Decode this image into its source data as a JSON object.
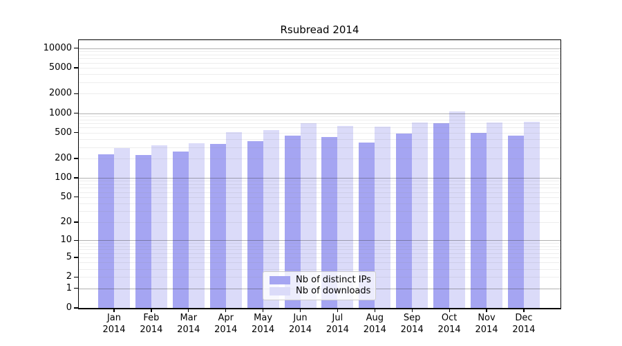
{
  "title": "Rsubread 2014",
  "chart_data": {
    "type": "bar",
    "title": "Rsubread 2014",
    "x_tick_months": [
      "Jan",
      "Feb",
      "Mar",
      "Apr",
      "May",
      "Jun",
      "Jul",
      "Aug",
      "Sep",
      "Oct",
      "Nov",
      "Dec"
    ],
    "x_tick_year": "2014",
    "categories": [
      "Jan 2014",
      "Feb 2014",
      "Mar 2014",
      "Apr 2014",
      "May 2014",
      "Jun 2014",
      "Jul 2014",
      "Aug 2014",
      "Sep 2014",
      "Oct 2014",
      "Nov 2014",
      "Dec 2014"
    ],
    "series": [
      {
        "name": "Nb of distinct IPs",
        "color": "#a5a5f2",
        "values": [
          234,
          228,
          254,
          338,
          374,
          450,
          426,
          350,
          489,
          702,
          497,
          450
        ]
      },
      {
        "name": "Nb of downloads",
        "color": "#dbdbf9",
        "values": [
          290,
          319,
          341,
          515,
          548,
          696,
          640,
          616,
          719,
          1057,
          724,
          742
        ]
      }
    ],
    "y_ticks": [
      0,
      1,
      2,
      5,
      10,
      20,
      50,
      100,
      200,
      500,
      1000,
      2000,
      5000,
      10000
    ],
    "y_scale": "log10(y+1)",
    "y_range": [
      0,
      13500
    ],
    "grid": true,
    "legend_position": "lower center"
  },
  "colors": {
    "bar_distinct_ips": "#a5a5f2",
    "bar_downloads": "#dbdbf9",
    "major_grid": "#b4b4b4",
    "minor_grid": "#e5e5e5",
    "axis": "#000000",
    "legend_border": "#cccccc",
    "background": "#ffffff"
  }
}
